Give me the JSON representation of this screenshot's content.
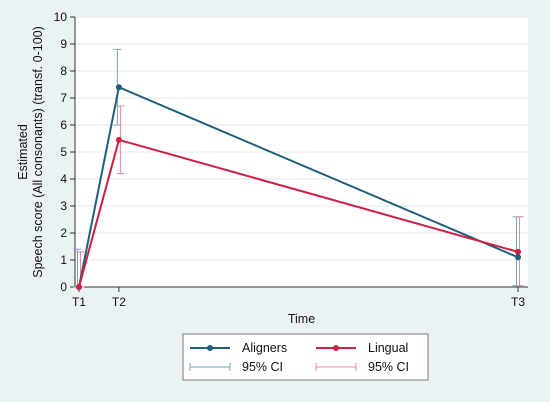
{
  "chart_data": {
    "type": "line",
    "xlabel": "Time",
    "ylabel_line1": "Estimated",
    "ylabel_line2": "Speech score (All consonants) (transf. 0-100)",
    "x_tick_labels": [
      "T1",
      "T2",
      "T3"
    ],
    "x": [
      1,
      2,
      12
    ],
    "xlim": [
      0.9,
      12.25
    ],
    "ylim": [
      0,
      10
    ],
    "y_ticks": [
      0,
      1,
      2,
      3,
      4,
      5,
      6,
      7,
      8,
      9,
      10
    ],
    "grid": "horizontal",
    "legend_position": "bottom",
    "series": [
      {
        "name": "Aligners",
        "color": "#1f5f7a",
        "ci_color": "#7aa3bd",
        "ci_label": "95% CI",
        "values": [
          0.0,
          7.4,
          1.1
        ],
        "ci_low": [
          0.0,
          6.0,
          0.05
        ],
        "ci_high": [
          1.4,
          8.8,
          2.6
        ]
      },
      {
        "name": "Lingual",
        "color": "#cf1f42",
        "ci_color": "#e48ca0",
        "ci_label": "95% CI",
        "values": [
          0.0,
          5.45,
          1.3
        ],
        "ci_low": [
          0.0,
          4.2,
          0.05
        ],
        "ci_high": [
          1.3,
          6.7,
          2.6
        ]
      }
    ]
  }
}
